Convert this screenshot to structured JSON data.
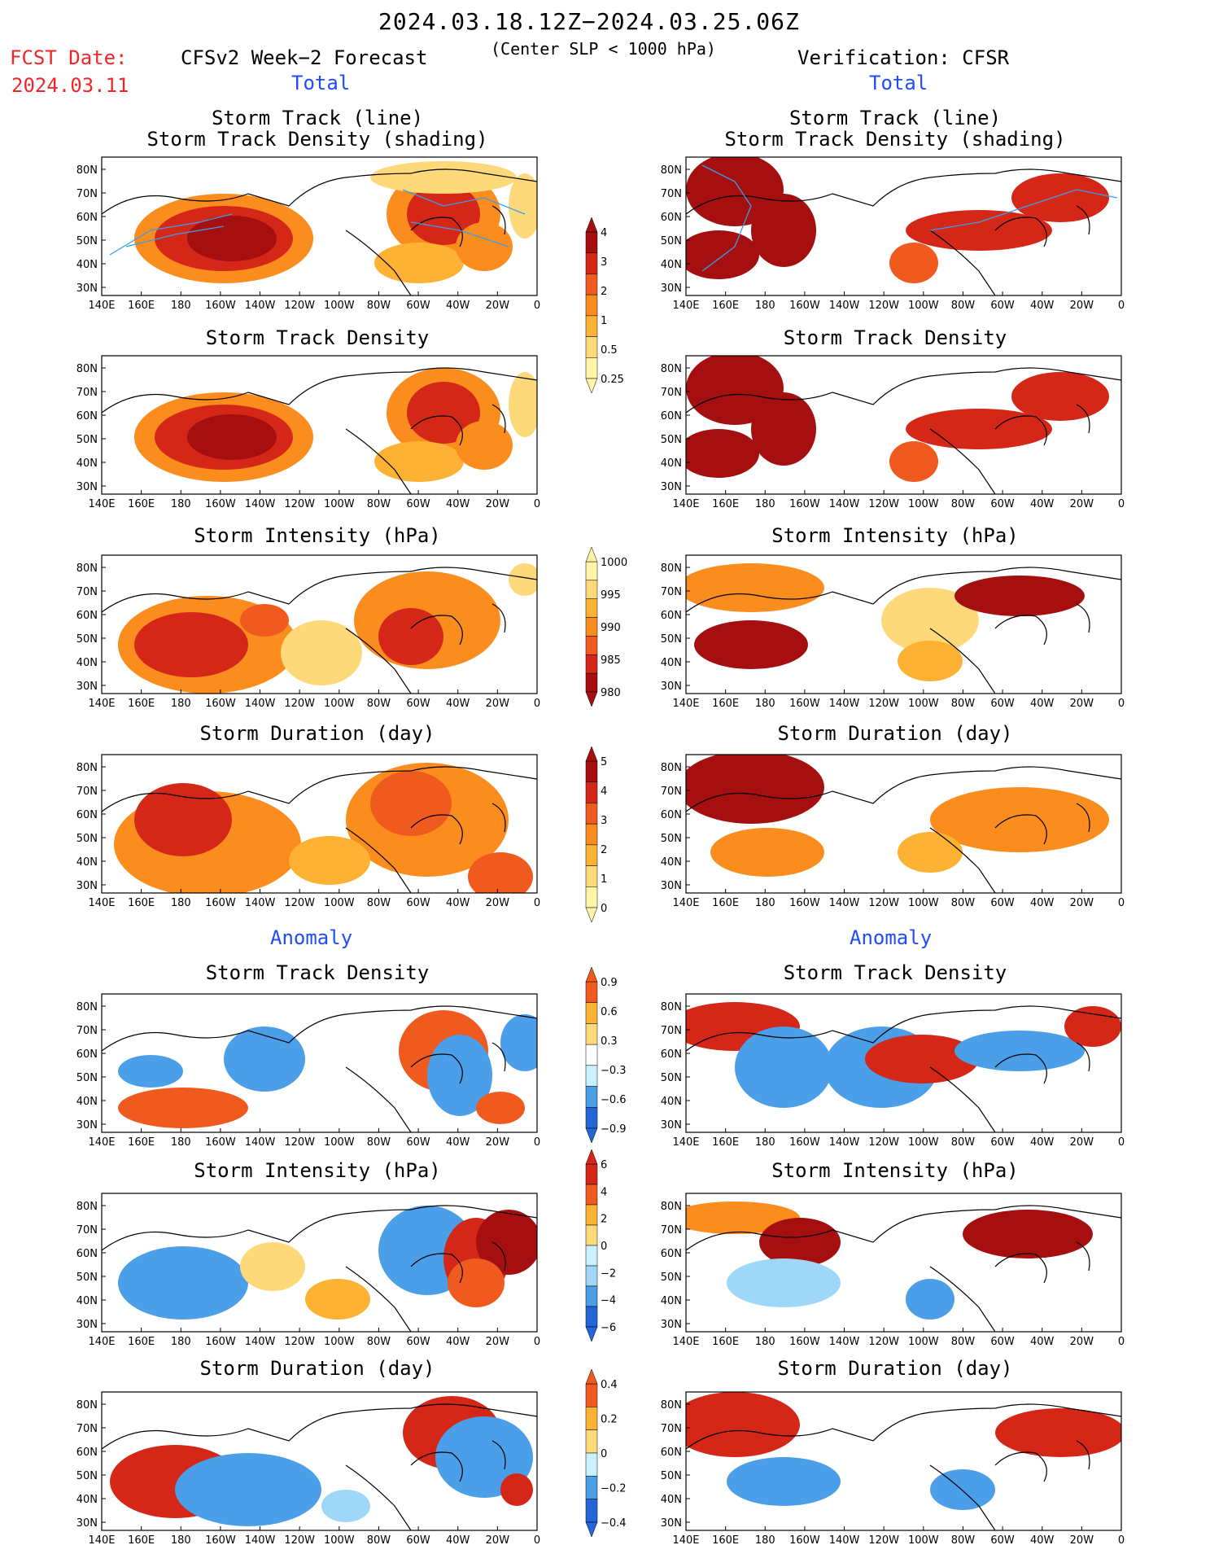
{
  "header": {
    "date_range": "2024.03.18.12Z−2024.03.25.06Z",
    "subtitle": "(Center SLP < 1000 hPa)",
    "fcst_label": "FCST Date:",
    "fcst_date": "2024.03.11",
    "left_title": "CFSv2 Week−2 Forecast",
    "right_title": "Verification: CFSR",
    "total_label": "Total",
    "anomaly_label": "Anomaly"
  },
  "axes": {
    "lon_ticks": [
      "140E",
      "160E",
      "180",
      "160W",
      "140W",
      "120W",
      "100W",
      "80W",
      "60W",
      "40W",
      "20W",
      "0"
    ],
    "lat_ticks": [
      "80N",
      "70N",
      "60N",
      "50N",
      "40N",
      "30N"
    ]
  },
  "panel_titles": {
    "track_line": "Storm Track (line)",
    "track_shading": "Storm Track Density (shading)",
    "density": "Storm Track Density",
    "intensity": "Storm Intensity (hPa)",
    "duration": "Storm Duration (day)"
  },
  "colorbars": {
    "density": [
      "4",
      "3",
      "2",
      "1",
      "0.5",
      "0.25"
    ],
    "intensity": [
      "1000",
      "995",
      "990",
      "985",
      "980"
    ],
    "duration": [
      "5",
      "4",
      "3",
      "2",
      "1",
      "0"
    ],
    "density_anom": [
      "0.9",
      "0.6",
      "0.3",
      "−0.3",
      "−0.6",
      "−0.9"
    ],
    "intensity_anom": [
      "6",
      "4",
      "2",
      "0",
      "−2",
      "−4",
      "−6"
    ],
    "duration_anom": [
      "0.4",
      "0.2",
      "0",
      "−0.2",
      "−0.4"
    ]
  },
  "colors": {
    "pos": [
      "#fff3a8",
      "#fed979",
      "#fdb233",
      "#fb8c1e",
      "#f05a1e",
      "#d42718",
      "#a50f0f"
    ],
    "neg": [
      "#c8f0ff",
      "#9ed7f7",
      "#4b9ee8",
      "#2466d6"
    ],
    "track_line": "#3aa0e8",
    "title_red": "#f0262a",
    "title_blue": "#1f4bff"
  }
}
